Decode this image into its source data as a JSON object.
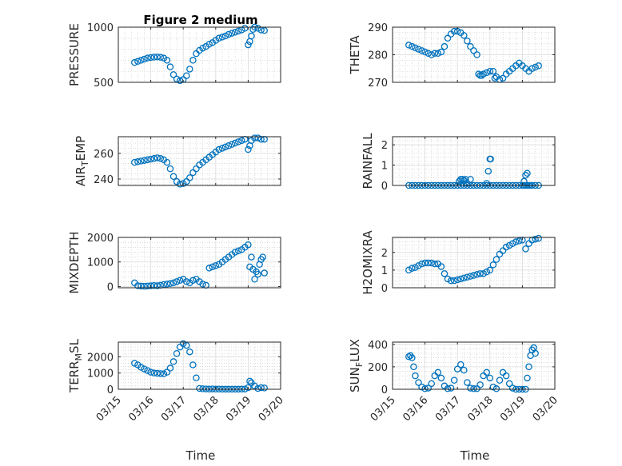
{
  "figure": {
    "title": "Figure 2 medium",
    "xlabel": "Time",
    "marker_color": "#0072BD",
    "grid_color": "#c8c8c8"
  },
  "chart_data": [
    {
      "type": "scatter",
      "ylabel": "PRESSURE",
      "ylim": [
        500,
        1000
      ],
      "yticks": [
        500,
        1000
      ],
      "x": [
        15.5,
        15.6,
        15.7,
        15.8,
        15.9,
        16.0,
        16.1,
        16.2,
        16.3,
        16.4,
        16.5,
        16.6,
        16.7,
        16.8,
        16.9,
        17.0,
        17.1,
        17.2,
        17.3,
        17.4,
        17.5,
        17.6,
        17.7,
        17.8,
        17.9,
        18.0,
        18.1,
        18.2,
        18.3,
        18.4,
        18.5,
        18.6,
        18.7,
        18.8,
        18.9,
        19.0,
        19.05,
        19.1,
        19.15,
        19.2,
        19.3,
        19.4,
        19.5
      ],
      "y": [
        680,
        690,
        700,
        710,
        720,
        725,
        728,
        730,
        727,
        720,
        700,
        640,
        570,
        530,
        515,
        525,
        560,
        620,
        700,
        760,
        790,
        810,
        825,
        845,
        860,
        880,
        900,
        910,
        920,
        935,
        945,
        955,
        965,
        975,
        990,
        840,
        870,
        920,
        980,
        1000,
        990,
        975,
        970
      ]
    },
    {
      "type": "scatter",
      "ylabel": "THETA",
      "ylim": [
        270,
        290
      ],
      "yticks": [
        270,
        280,
        290
      ],
      "x": [
        15.5,
        15.6,
        15.7,
        15.8,
        15.9,
        16.0,
        16.1,
        16.2,
        16.3,
        16.4,
        16.5,
        16.6,
        16.7,
        16.8,
        16.9,
        17.0,
        17.1,
        17.2,
        17.3,
        17.4,
        17.5,
        17.6,
        17.65,
        17.7,
        17.75,
        17.8,
        17.9,
        18.0,
        18.1,
        18.15,
        18.2,
        18.3,
        18.4,
        18.5,
        18.6,
        18.7,
        18.8,
        18.9,
        19.0,
        19.1,
        19.2,
        19.3,
        19.4,
        19.5
      ],
      "y": [
        283.5,
        283,
        282.5,
        282,
        281.5,
        281,
        280.5,
        280,
        280.5,
        280.5,
        281,
        283,
        286,
        287.5,
        288.5,
        288.5,
        288,
        287,
        285,
        283,
        281.5,
        280,
        273,
        272.5,
        272.5,
        273,
        273.5,
        274,
        274,
        271.5,
        272,
        271,
        271.5,
        273,
        274,
        275,
        276,
        277,
        276,
        275,
        274,
        275,
        275.5,
        276
      ]
    },
    {
      "type": "scatter",
      "ylabel": "AIR",
      "ylabel_sub": "T",
      "ylabel_tail": "EMP",
      "ylim": [
        235,
        273
      ],
      "yticks": [
        240,
        260
      ],
      "x": [
        15.5,
        15.6,
        15.7,
        15.8,
        15.9,
        16.0,
        16.1,
        16.2,
        16.3,
        16.4,
        16.5,
        16.6,
        16.7,
        16.8,
        16.9,
        17.0,
        17.1,
        17.2,
        17.3,
        17.4,
        17.5,
        17.6,
        17.7,
        17.8,
        17.9,
        18.0,
        18.1,
        18.2,
        18.3,
        18.4,
        18.5,
        18.6,
        18.7,
        18.8,
        18.9,
        19.0,
        19.05,
        19.1,
        19.2,
        19.3,
        19.4,
        19.5
      ],
      "y": [
        253,
        253.5,
        254,
        254.5,
        255,
        255.5,
        256,
        256.5,
        256,
        255,
        253,
        248,
        242,
        238,
        236,
        236.5,
        238,
        241,
        245,
        248,
        251,
        253,
        255,
        257,
        259,
        261,
        263,
        264,
        265,
        266,
        267,
        268,
        269,
        270,
        271,
        263,
        266,
        270,
        272,
        272,
        271,
        271
      ]
    },
    {
      "type": "scatter",
      "ylabel": "RAINFALL",
      "ylim": [
        0,
        2.4
      ],
      "yticks": [
        0,
        1,
        2
      ],
      "x": [
        15.5,
        15.6,
        15.7,
        15.8,
        15.9,
        16.0,
        16.1,
        16.2,
        16.3,
        16.4,
        16.5,
        16.6,
        16.7,
        16.8,
        16.9,
        17.0,
        17.1,
        17.2,
        17.3,
        17.4,
        17.5,
        17.6,
        17.7,
        17.8,
        17.9,
        18.0,
        18.1,
        18.2,
        18.3,
        18.4,
        18.5,
        18.6,
        18.7,
        18.8,
        18.9,
        19.0,
        19.05,
        19.1,
        19.15,
        19.2,
        19.25,
        19.3,
        19.4,
        19.5,
        17.05,
        17.1,
        17.15,
        17.2,
        17.25,
        17.3,
        17.4,
        17.9,
        17.95,
        18.0,
        18.02,
        19.05,
        19.1,
        19.15
      ],
      "y": [
        0,
        0,
        0,
        0,
        0,
        0,
        0,
        0,
        0,
        0,
        0,
        0,
        0,
        0,
        0,
        0,
        0,
        0,
        0,
        0,
        0,
        0,
        0,
        0,
        0,
        0,
        0,
        0,
        0,
        0,
        0,
        0,
        0,
        0,
        0,
        0,
        0,
        0,
        0,
        0,
        0,
        0,
        0,
        0,
        0.2,
        0.3,
        0.3,
        0.25,
        0.3,
        0.1,
        0.3,
        0.1,
        0.7,
        1.3,
        1.3,
        0.2,
        0.5,
        0.6
      ]
    },
    {
      "type": "scatter",
      "ylabel": "MIXDEPTH",
      "ylim": [
        -50,
        2000
      ],
      "yticks": [
        0,
        1000,
        2000
      ],
      "x": [
        15.5,
        15.6,
        15.7,
        15.8,
        15.9,
        16.0,
        16.1,
        16.2,
        16.3,
        16.4,
        16.5,
        16.6,
        16.7,
        16.8,
        16.9,
        17.0,
        17.1,
        17.2,
        17.3,
        17.4,
        17.5,
        17.6,
        17.7,
        17.8,
        17.9,
        18.0,
        18.1,
        18.2,
        18.3,
        18.4,
        18.5,
        18.6,
        18.7,
        18.8,
        18.9,
        19.0,
        19.05,
        19.1,
        19.15,
        19.2,
        19.25,
        19.3,
        19.35,
        19.4,
        19.45,
        19.5
      ],
      "y": [
        150,
        30,
        20,
        10,
        20,
        30,
        40,
        30,
        50,
        80,
        100,
        120,
        150,
        200,
        250,
        300,
        200,
        150,
        250,
        300,
        200,
        100,
        50,
        750,
        800,
        850,
        900,
        1000,
        1100,
        1200,
        1300,
        1400,
        1450,
        1500,
        1600,
        1700,
        800,
        1200,
        700,
        300,
        600,
        500,
        900,
        1100,
        1200,
        550
      ]
    },
    {
      "type": "scatter",
      "ylabel": "H2OMIXRA",
      "ylim": [
        0,
        2.85
      ],
      "yticks": [
        0,
        1,
        2
      ],
      "x": [
        15.5,
        15.6,
        15.7,
        15.8,
        15.9,
        16.0,
        16.1,
        16.2,
        16.3,
        16.4,
        16.5,
        16.6,
        16.7,
        16.8,
        16.9,
        17.0,
        17.1,
        17.2,
        17.3,
        17.4,
        17.5,
        17.6,
        17.7,
        17.8,
        17.9,
        18.0,
        18.1,
        18.2,
        18.3,
        18.4,
        18.5,
        18.6,
        18.7,
        18.8,
        18.9,
        19.0,
        19.1,
        19.2,
        19.3,
        19.4,
        19.5
      ],
      "y": [
        1.0,
        1.1,
        1.15,
        1.25,
        1.35,
        1.4,
        1.4,
        1.4,
        1.35,
        1.35,
        1.2,
        0.8,
        0.5,
        0.4,
        0.4,
        0.45,
        0.5,
        0.55,
        0.6,
        0.65,
        0.7,
        0.75,
        0.8,
        0.8,
        0.9,
        1.0,
        1.3,
        1.6,
        1.9,
        2.1,
        2.3,
        2.4,
        2.5,
        2.6,
        2.65,
        2.7,
        2.2,
        2.5,
        2.7,
        2.75,
        2.8
      ]
    },
    {
      "type": "scatter",
      "ylabel": "TERR",
      "ylabel_sub": "M",
      "ylabel_tail": "SL",
      "ylim": [
        0,
        2900
      ],
      "yticks": [
        0,
        1000,
        2000
      ],
      "x": [
        15.5,
        15.6,
        15.7,
        15.8,
        15.9,
        16.0,
        16.1,
        16.2,
        16.3,
        16.4,
        16.5,
        16.6,
        16.7,
        16.8,
        16.9,
        17.0,
        17.1,
        17.2,
        17.3,
        17.4,
        17.5,
        17.6,
        17.7,
        17.8,
        17.9,
        18.0,
        18.1,
        18.2,
        18.3,
        18.4,
        18.5,
        18.6,
        18.7,
        18.8,
        18.9,
        19.0,
        19.05,
        19.1,
        19.2,
        19.3,
        19.4,
        19.5
      ],
      "y": [
        1600,
        1500,
        1350,
        1250,
        1150,
        1050,
        1000,
        980,
        960,
        950,
        1050,
        1300,
        1700,
        2200,
        2600,
        2800,
        2700,
        2300,
        1500,
        700,
        50,
        30,
        20,
        10,
        20,
        10,
        10,
        5,
        5,
        5,
        5,
        5,
        5,
        10,
        15,
        100,
        500,
        400,
        200,
        50,
        100,
        80
      ]
    },
    {
      "type": "scatter",
      "ylabel": "SUN",
      "ylabel_sub": "F",
      "ylabel_tail": "LUX",
      "ylim": [
        0,
        420
      ],
      "yticks": [
        0,
        200,
        400
      ],
      "x": [
        15.5,
        15.55,
        15.6,
        15.65,
        15.7,
        15.8,
        15.9,
        16.0,
        16.1,
        16.2,
        16.3,
        16.4,
        16.5,
        16.6,
        16.7,
        16.8,
        16.9,
        17.0,
        17.1,
        17.2,
        17.3,
        17.4,
        17.5,
        17.6,
        17.7,
        17.8,
        17.9,
        18.0,
        18.1,
        18.2,
        18.3,
        18.4,
        18.5,
        18.6,
        18.7,
        18.8,
        18.9,
        19.0,
        19.1,
        19.15,
        19.2,
        19.25,
        19.3,
        19.35,
        19.4
      ],
      "y": [
        290,
        300,
        280,
        200,
        120,
        60,
        20,
        5,
        10,
        50,
        120,
        150,
        100,
        30,
        5,
        10,
        80,
        180,
        220,
        170,
        60,
        10,
        5,
        5,
        40,
        120,
        150,
        100,
        20,
        5,
        80,
        150,
        120,
        50,
        10,
        0,
        0,
        0,
        0,
        100,
        200,
        300,
        350,
        370,
        320
      ]
    }
  ],
  "x_axis": {
    "lim": [
      15,
      20
    ],
    "ticks": [
      15,
      16,
      17,
      18,
      19,
      20
    ],
    "tick_labels": [
      "03/15",
      "03/16",
      "03/17",
      "03/18",
      "03/19",
      "03/20"
    ]
  }
}
